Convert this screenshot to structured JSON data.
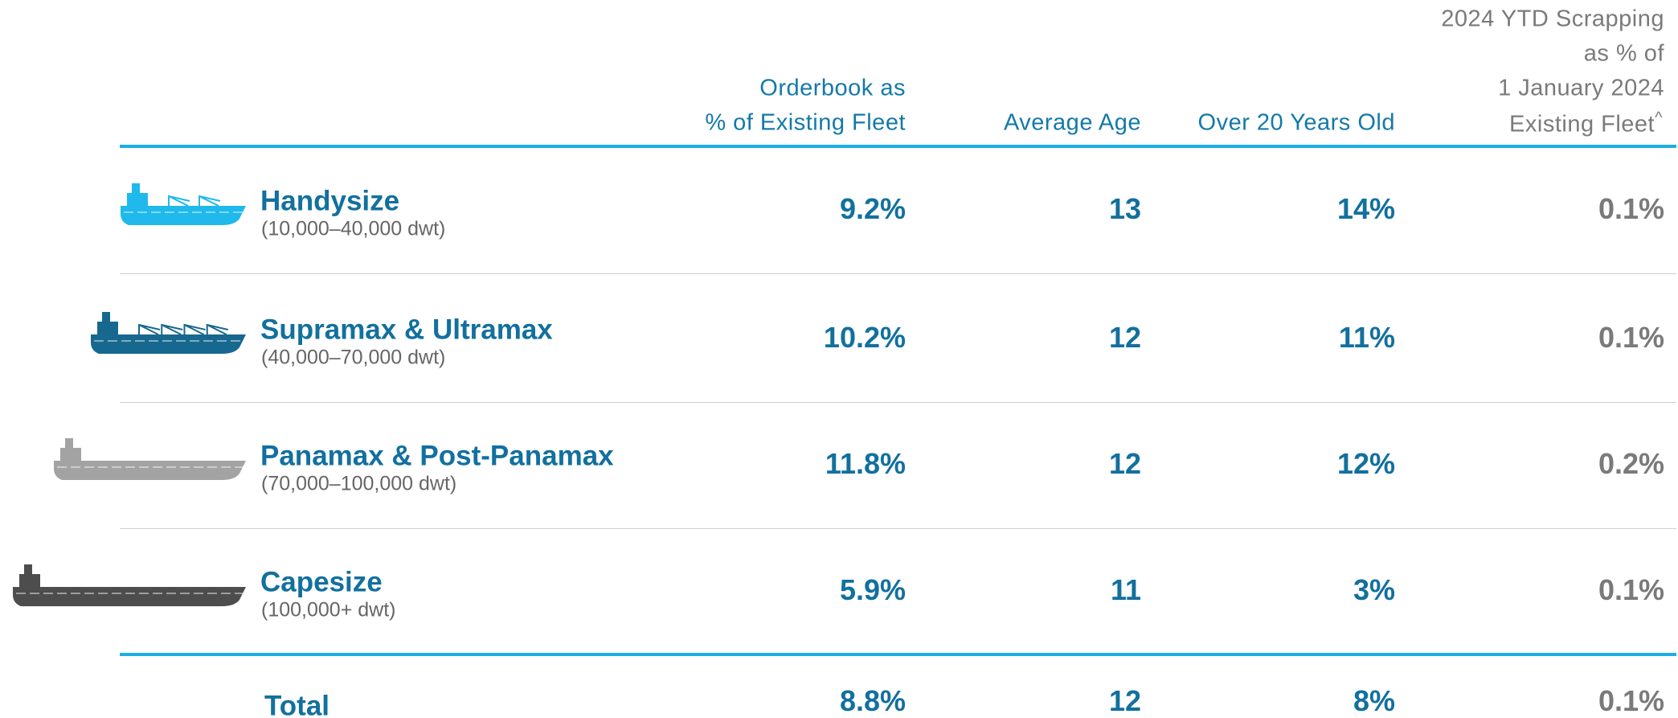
{
  "header": {
    "columns": [
      {
        "lines": [
          "Orderbook as",
          "% of Existing Fleet"
        ]
      },
      {
        "lines": [
          "Average Age"
        ]
      },
      {
        "lines": [
          "Over 20 Years Old"
        ]
      },
      {
        "lines": [
          "2024 YTD Scrapping",
          "as % of",
          "1 January 2024",
          "Existing Fleet"
        ],
        "footnote_marker": "^"
      }
    ]
  },
  "rows": [
    {
      "name": "Handysize",
      "range": "(10,000–40,000 dwt)",
      "values": [
        "9.2%",
        "13",
        "14%",
        "0.1%"
      ]
    },
    {
      "name": "Supramax & Ultramax",
      "range": "(40,000–70,000 dwt)",
      "values": [
        "10.2%",
        "12",
        "11%",
        "0.1%"
      ]
    },
    {
      "name": "Panamax & Post-Panamax",
      "range": "(70,000–100,000 dwt)",
      "values": [
        "11.8%",
        "12",
        "12%",
        "0.2%"
      ]
    },
    {
      "name": "Capesize",
      "range": "(100,000+ dwt)",
      "values": [
        "5.9%",
        "11",
        "3%",
        "0.1%"
      ]
    }
  ],
  "total": {
    "label": "Total",
    "values": [
      "8.8%",
      "12",
      "8%",
      "0.1%"
    ]
  }
}
